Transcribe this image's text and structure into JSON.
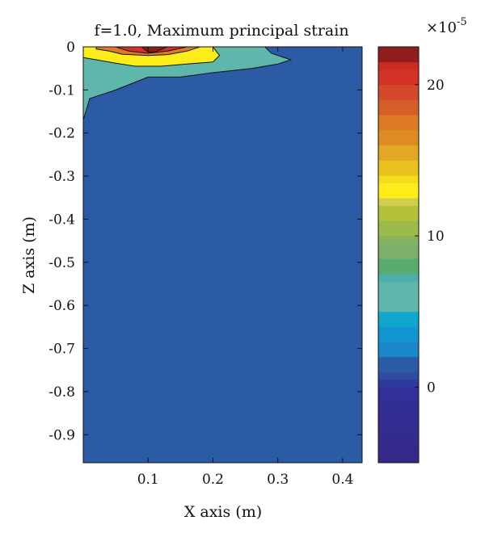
{
  "chart_data": {
    "type": "contour",
    "title": "f=1.0, Maximum principal strain",
    "xlabel": "X axis (m)",
    "ylabel": "Z axis (m)",
    "xlim": [
      0,
      0.43
    ],
    "ylim": [
      -0.965,
      0
    ],
    "x_ticks": [
      0.1,
      0.2,
      0.3,
      0.4
    ],
    "x_tick_labels": [
      "0.1",
      "0.2",
      "0.3",
      "0.4"
    ],
    "y_ticks": [
      0,
      -0.1,
      -0.2,
      -0.3,
      -0.4,
      -0.5,
      -0.6,
      -0.7,
      -0.8,
      -0.9
    ],
    "y_tick_labels": [
      "0",
      "-0.1",
      "-0.2",
      "-0.3",
      "-0.4",
      "-0.5",
      "-0.6",
      "-0.7",
      "-0.8",
      "-0.9"
    ],
    "grid": false,
    "background_color": "#2a5ba4",
    "colorbar": {
      "multiplier_base": "×10",
      "multiplier_exp": "-5",
      "range": [
        -5,
        22.5
      ],
      "ticks": [
        0,
        10,
        20
      ],
      "tick_labels": [
        "0",
        "10",
        "20"
      ],
      "levels": [
        {
          "from": -5.0,
          "to": -4.0,
          "color": "#352a87"
        },
        {
          "from": -4.0,
          "to": -3.0,
          "color": "#342c8c"
        },
        {
          "from": -3.0,
          "to": -2.0,
          "color": "#352d90"
        },
        {
          "from": -2.0,
          "to": -1.0,
          "color": "#332e94"
        },
        {
          "from": -1.0,
          "to": 0.0,
          "color": "#312f98"
        },
        {
          "from": 0.0,
          "to": 0.5,
          "color": "#2e3a9e"
        },
        {
          "from": 0.5,
          "to": 1.0,
          "color": "#2f4ba4"
        },
        {
          "from": 1.0,
          "to": 2.0,
          "color": "#2a5ba4"
        },
        {
          "from": 2.0,
          "to": 3.0,
          "color": "#1b86cb"
        },
        {
          "from": 3.0,
          "to": 4.0,
          "color": "#1295d2"
        },
        {
          "from": 4.0,
          "to": 5.0,
          "color": "#0fa7cb"
        },
        {
          "from": 5.0,
          "to": 7.0,
          "color": "#5fb7ab"
        },
        {
          "from": 7.0,
          "to": 7.5,
          "color": "#4bb0ad"
        },
        {
          "from": 7.5,
          "to": 8.5,
          "color": "#5aab6e"
        },
        {
          "from": 8.5,
          "to": 9.5,
          "color": "#7cb06c"
        },
        {
          "from": 9.5,
          "to": 10.0,
          "color": "#86b25e"
        },
        {
          "from": 10.0,
          "to": 11.0,
          "color": "#9cbb4a"
        },
        {
          "from": 11.0,
          "to": 12.0,
          "color": "#b4c23a"
        },
        {
          "from": 12.0,
          "to": 12.5,
          "color": "#d0ce4e"
        },
        {
          "from": 12.5,
          "to": 13.5,
          "color": "#fced1a"
        },
        {
          "from": 13.5,
          "to": 14.0,
          "color": "#f4dc1c"
        },
        {
          "from": 14.0,
          "to": 15.0,
          "color": "#e8c11c"
        },
        {
          "from": 15.0,
          "to": 16.0,
          "color": "#e0a823"
        },
        {
          "from": 16.0,
          "to": 17.0,
          "color": "#de8b22"
        },
        {
          "from": 17.0,
          "to": 18.0,
          "color": "#de7a26"
        },
        {
          "from": 18.0,
          "to": 19.0,
          "color": "#d65e28"
        },
        {
          "from": 19.0,
          "to": 20.0,
          "color": "#d3492a"
        },
        {
          "from": 20.0,
          "to": 21.0,
          "color": "#d23228"
        },
        {
          "from": 21.0,
          "to": 21.5,
          "color": "#cb2c22"
        },
        {
          "from": 21.5,
          "to": 22.5,
          "color": "#8f1d1c"
        }
      ]
    },
    "contour_regions": [
      {
        "level": "cyan",
        "color": "#5fb7ab",
        "points": [
          [
            0,
            0
          ],
          [
            0.28,
            0
          ],
          [
            0.29,
            -0.015
          ],
          [
            0.32,
            -0.03
          ],
          [
            0.3,
            -0.04
          ],
          [
            0.26,
            -0.05
          ],
          [
            0.2,
            -0.06
          ],
          [
            0.15,
            -0.07
          ],
          [
            0.1,
            -0.07
          ],
          [
            0.05,
            -0.1
          ],
          [
            0.01,
            -0.12
          ],
          [
            0.003,
            -0.155
          ],
          [
            0,
            -0.17
          ]
        ]
      },
      {
        "level": "yellow",
        "color": "#fced1a",
        "points": [
          [
            0,
            0
          ],
          [
            0.2,
            0
          ],
          [
            0.21,
            -0.02
          ],
          [
            0.2,
            -0.035
          ],
          [
            0.16,
            -0.04
          ],
          [
            0.12,
            -0.045
          ],
          [
            0.08,
            -0.045
          ],
          [
            0.05,
            -0.038
          ],
          [
            0.02,
            -0.03
          ],
          [
            0,
            -0.025
          ]
        ]
      },
      {
        "level": "orange",
        "color": "#de7a26",
        "points": [
          [
            0.02,
            0
          ],
          [
            0.18,
            0
          ],
          [
            0.16,
            -0.01
          ],
          [
            0.13,
            -0.018
          ],
          [
            0.1,
            -0.02
          ],
          [
            0.06,
            -0.017
          ],
          [
            0.04,
            -0.01
          ],
          [
            0.02,
            -0.005
          ]
        ]
      },
      {
        "level": "red",
        "color": "#d23228",
        "points": [
          [
            0.05,
            0
          ],
          [
            0.16,
            0
          ],
          [
            0.13,
            -0.01
          ],
          [
            0.1,
            -0.015
          ],
          [
            0.07,
            -0.01
          ]
        ]
      },
      {
        "level": "dark-red",
        "color": "#8f1d1c",
        "points": [
          [
            0.09,
            0
          ],
          [
            0.13,
            0
          ],
          [
            0.11,
            -0.012
          ],
          [
            0.1,
            -0.012
          ]
        ]
      }
    ]
  }
}
